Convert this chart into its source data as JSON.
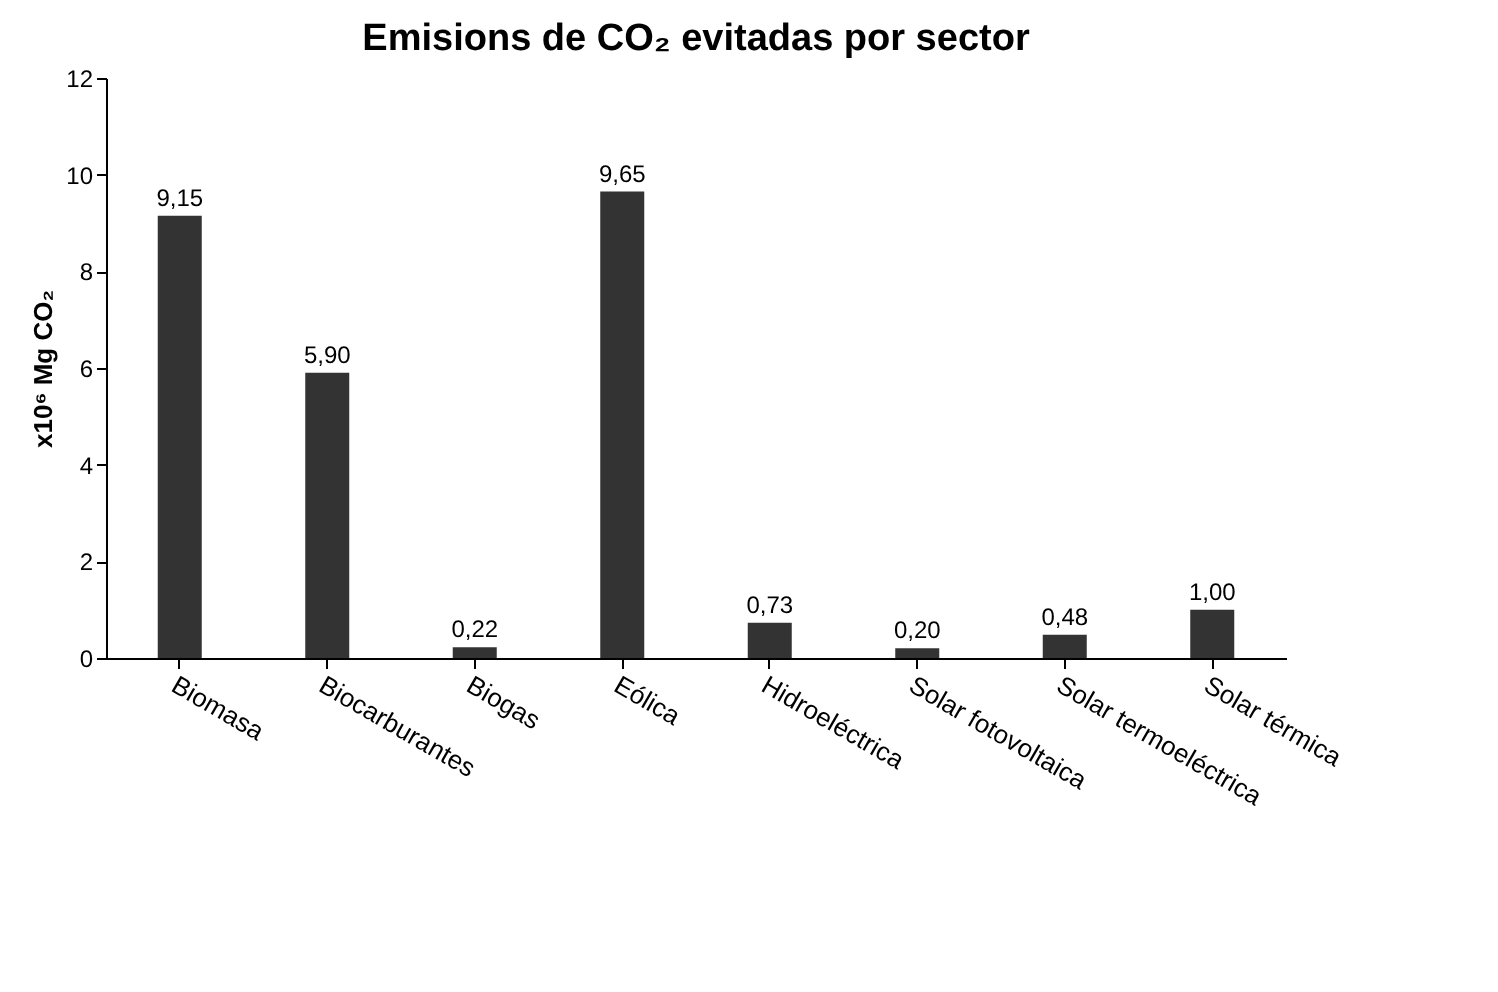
{
  "chart_data": {
    "type": "bar",
    "title": "Emisions de CO₂ evitadas por sector",
    "ylabel": "x10⁶ Mg CO₂",
    "categories": [
      "Biomasa",
      "Biocarburantes",
      "Biogas",
      "Eólica",
      "Hidroeléctrica",
      "Solar fotovoltaica",
      "Solar termoeléctrica",
      "Solar térmica"
    ],
    "values": [
      9.15,
      5.9,
      0.22,
      9.65,
      0.73,
      0.2,
      0.48,
      1.0
    ],
    "value_labels": [
      "9,15",
      "5,90",
      "0,22",
      "9,65",
      "0,73",
      "0,20",
      "0,48",
      "1,00"
    ],
    "color": "#333333",
    "ylim": [
      0,
      12
    ],
    "yticks": [
      0,
      2,
      4,
      6,
      8,
      10,
      12
    ],
    "grid": false
  }
}
